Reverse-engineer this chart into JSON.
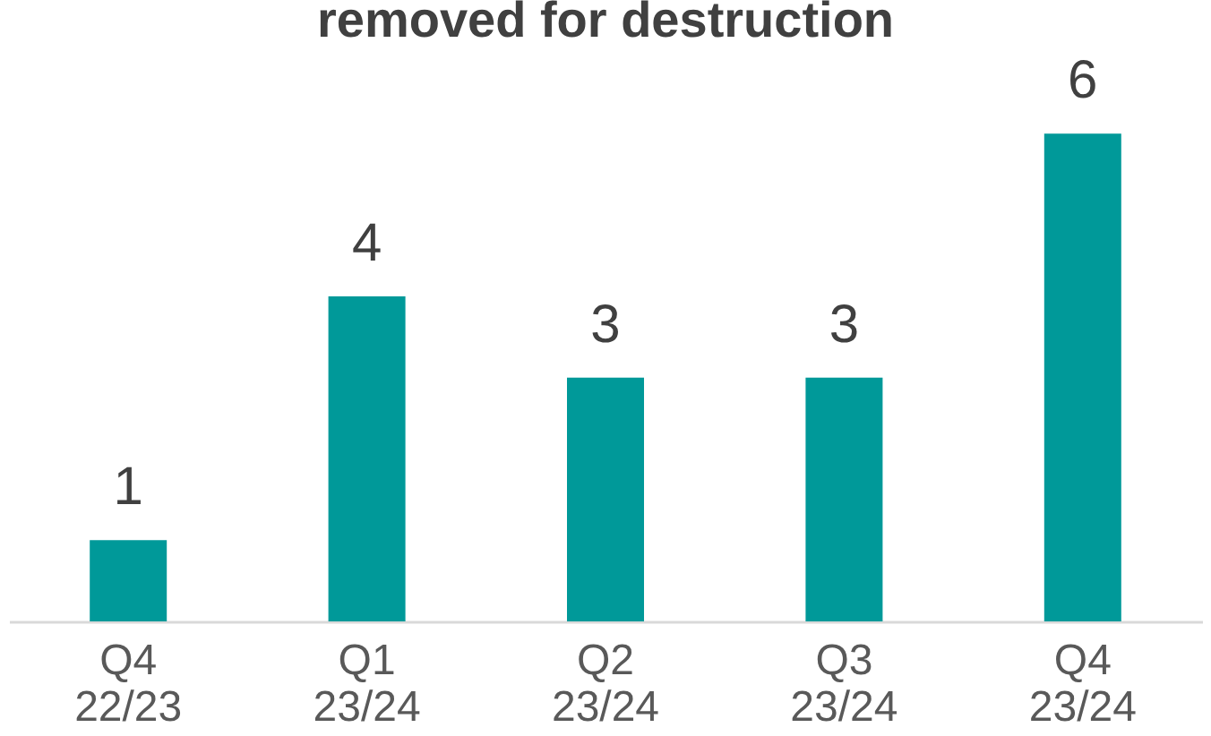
{
  "chart_data": {
    "type": "bar",
    "title": "removed for destruction",
    "categories": [
      "Q4 22/23",
      "Q1 23/24",
      "Q2 23/24",
      "Q3 23/24",
      "Q4 23/24"
    ],
    "values": [
      1,
      4,
      3,
      3,
      6
    ],
    "color": "#009999",
    "data_labels": true,
    "grid": false
  }
}
